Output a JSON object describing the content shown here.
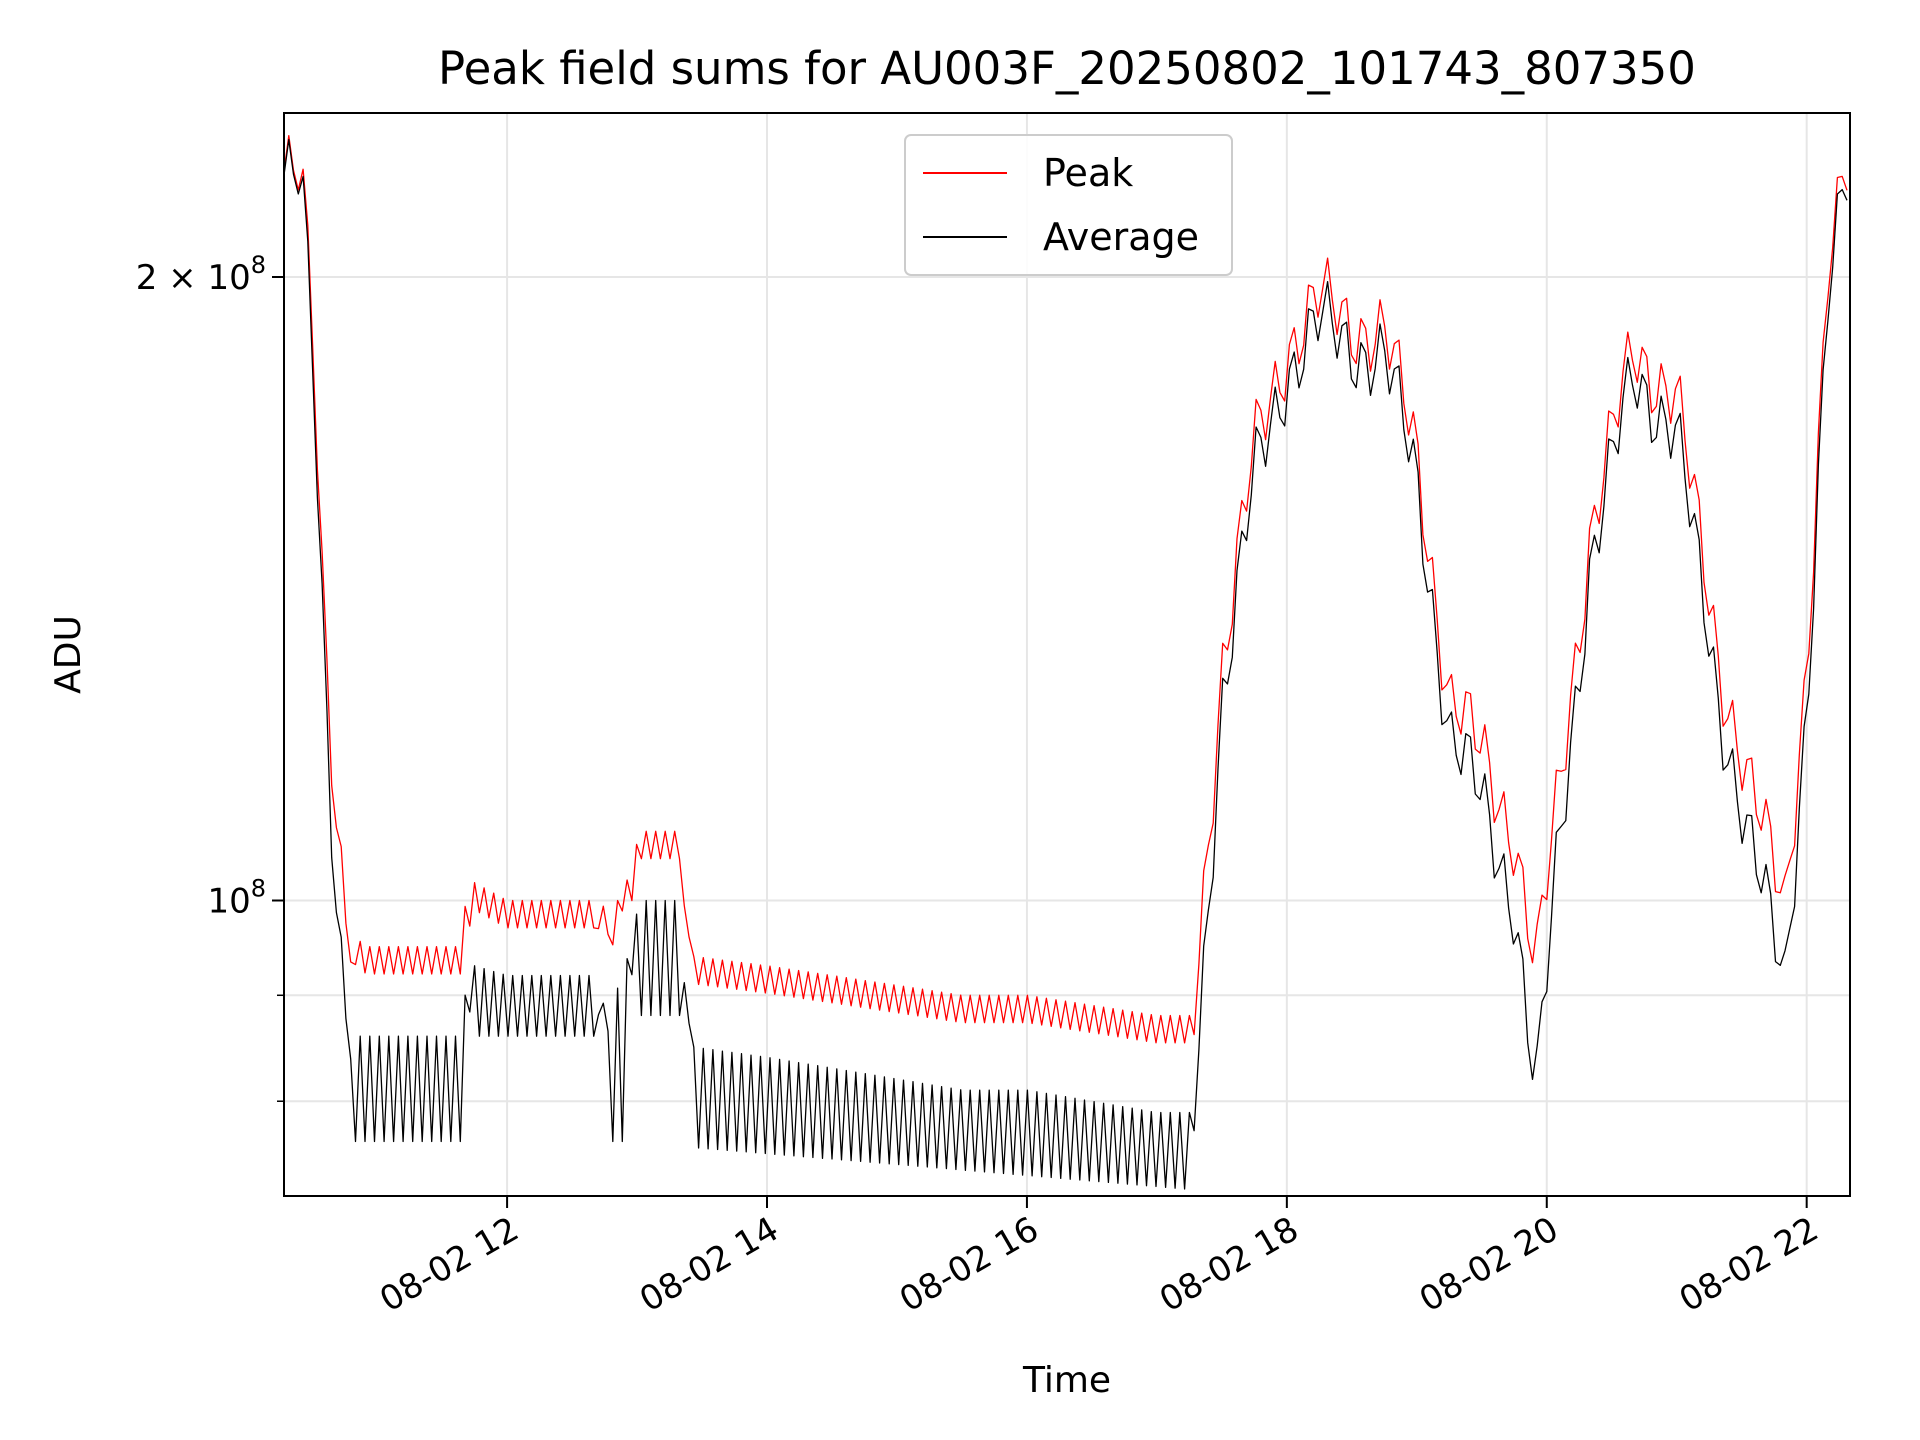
{
  "chart_data": {
    "type": "line",
    "title": "Peak field sums for AU003F_20250802_101743_807350",
    "xlabel": "Time",
    "ylabel": "ADU",
    "yscale": "log",
    "xlim": [
      "2025-08-02 10:17",
      "2025-08-02 22:20"
    ],
    "ylim": [
      72000000,
      240000000
    ],
    "grid": true,
    "legend_position": "upper center",
    "colors": {
      "peak": "#ff0000",
      "average": "#000000"
    },
    "x_ticks": [
      {
        "t": "2025-08-02 12:00",
        "label": "08-02 12"
      },
      {
        "t": "2025-08-02 14:00",
        "label": "08-02 14"
      },
      {
        "t": "2025-08-02 16:00",
        "label": "08-02 16"
      },
      {
        "t": "2025-08-02 18:00",
        "label": "08-02 18"
      },
      {
        "t": "2025-08-02 20:00",
        "label": "08-02 20"
      },
      {
        "t": "2025-08-02 22:00",
        "label": "08-02 22"
      }
    ],
    "y_major_ticks": [
      {
        "value": 100000000,
        "base": "10",
        "exp": "8"
      },
      {
        "value": 200000000,
        "base": "2 × 10",
        "exp": "8"
      }
    ],
    "y_minor_ticks": [
      80000000,
      90000000,
      100000000,
      200000000
    ],
    "series": [
      {
        "name": "Peak",
        "color": "#ff0000",
        "x": [
          "2025-08-02 10:17",
          "2025-08-02 10:25",
          "2025-08-02 10:30",
          "2025-08-02 10:35",
          "2025-08-02 10:40",
          "2025-08-02 10:45",
          "2025-08-02 10:50",
          "2025-08-02 10:55",
          "2025-08-02 11:00",
          "2025-08-02 11:20",
          "2025-08-02 11:40",
          "2025-08-02 11:45",
          "2025-08-02 12:00",
          "2025-08-02 12:20",
          "2025-08-02 12:40",
          "2025-08-02 12:45",
          "2025-08-02 13:00",
          "2025-08-02 13:10",
          "2025-08-02 13:20",
          "2025-08-02 13:25",
          "2025-08-02 14:00",
          "2025-08-02 14:30",
          "2025-08-02 15:00",
          "2025-08-02 15:30",
          "2025-08-02 16:00",
          "2025-08-02 16:30",
          "2025-08-02 17:00",
          "2025-08-02 17:17",
          "2025-08-02 17:30",
          "2025-08-02 17:45",
          "2025-08-02 18:00",
          "2025-08-02 18:15",
          "2025-08-02 18:30",
          "2025-08-02 18:45",
          "2025-08-02 19:00",
          "2025-08-02 19:15",
          "2025-08-02 19:30",
          "2025-08-02 19:45",
          "2025-08-02 19:55",
          "2025-08-02 20:05",
          "2025-08-02 20:20",
          "2025-08-02 20:40",
          "2025-08-02 21:00",
          "2025-08-02 21:20",
          "2025-08-02 21:35",
          "2025-08-02 21:50",
          "2025-08-02 22:00",
          "2025-08-02 22:10",
          "2025-08-02 22:20"
        ],
        "y": [
          225000000,
          223000000,
          190000000,
          140000000,
          115000000,
          100000000,
          96000000,
          95000000,
          95000000,
          95000000,
          95000000,
          102000000,
          100000000,
          100000000,
          100000000,
          95000000,
          108000000,
          108000000,
          108000000,
          94000000,
          93000000,
          92000000,
          91000000,
          90000000,
          90000000,
          89000000,
          88000000,
          88000000,
          130000000,
          165000000,
          185000000,
          195000000,
          190000000,
          188000000,
          165000000,
          125000000,
          118000000,
          108000000,
          92000000,
          112000000,
          150000000,
          185000000,
          175000000,
          130000000,
          112000000,
          100000000,
          130000000,
          200000000,
          230000000
        ]
      },
      {
        "name": "Average",
        "color": "#000000",
        "x": [
          "2025-08-02 10:17",
          "2025-08-02 10:25",
          "2025-08-02 10:30",
          "2025-08-02 10:35",
          "2025-08-02 10:40",
          "2025-08-02 10:45",
          "2025-08-02 10:50",
          "2025-08-02 10:55",
          "2025-08-02 11:00",
          "2025-08-02 11:20",
          "2025-08-02 11:40",
          "2025-08-02 11:45",
          "2025-08-02 12:00",
          "2025-08-02 12:20",
          "2025-08-02 12:40",
          "2025-08-02 12:45",
          "2025-08-02 13:00",
          "2025-08-02 13:10",
          "2025-08-02 13:20",
          "2025-08-02 13:25",
          "2025-08-02 14:00",
          "2025-08-02 14:30",
          "2025-08-02 15:00",
          "2025-08-02 15:30",
          "2025-08-02 16:00",
          "2025-08-02 16:30",
          "2025-08-02 17:00",
          "2025-08-02 17:17",
          "2025-08-02 17:30",
          "2025-08-02 17:45",
          "2025-08-02 18:00",
          "2025-08-02 18:15",
          "2025-08-02 18:30",
          "2025-08-02 18:45",
          "2025-08-02 19:00",
          "2025-08-02 19:15",
          "2025-08-02 19:30",
          "2025-08-02 19:45",
          "2025-08-02 19:55",
          "2025-08-02 20:05",
          "2025-08-02 20:20",
          "2025-08-02 20:40",
          "2025-08-02 21:00",
          "2025-08-02 21:20",
          "2025-08-02 21:35",
          "2025-08-02 21:50",
          "2025-08-02 22:00",
          "2025-08-02 22:10",
          "2025-08-02 22:20"
        ],
        "y": [
          224000000,
          222000000,
          185000000,
          135000000,
          105000000,
          90000000,
          86000000,
          86000000,
          86000000,
          86000000,
          86000000,
          93000000,
          92000000,
          92000000,
          92000000,
          85000000,
          100000000,
          100000000,
          100000000,
          85000000,
          84000000,
          83000000,
          82000000,
          81000000,
          81000000,
          80000000,
          79000000,
          79000000,
          125000000,
          160000000,
          180000000,
          190000000,
          185000000,
          183000000,
          160000000,
          120000000,
          112000000,
          100000000,
          80000000,
          105000000,
          145000000,
          180000000,
          168000000,
          124000000,
          105000000,
          92000000,
          124000000,
          195000000,
          228000000
        ]
      }
    ],
    "dip_envelope": {
      "description_segments": [
        {
          "from": "2025-08-02 10:50",
          "to": "2025-08-02 11:40",
          "low": 76500000
        },
        {
          "from": "2025-08-02 11:45",
          "to": "2025-08-02 12:40",
          "low": 86000000
        },
        {
          "from": "2025-08-02 12:45",
          "to": "2025-08-02 12:55",
          "low": 76500000
        },
        {
          "from": "2025-08-02 13:00",
          "to": "2025-08-02 13:20",
          "low": 88000000
        },
        {
          "from": "2025-08-02 13:25",
          "to": "2025-08-02 17:17",
          "low_start": 76000000,
          "low_end": 72500000
        }
      ]
    },
    "legend": [
      {
        "name": "Peak",
        "color": "#ff0000"
      },
      {
        "name": "Average",
        "color": "#000000"
      }
    ]
  }
}
